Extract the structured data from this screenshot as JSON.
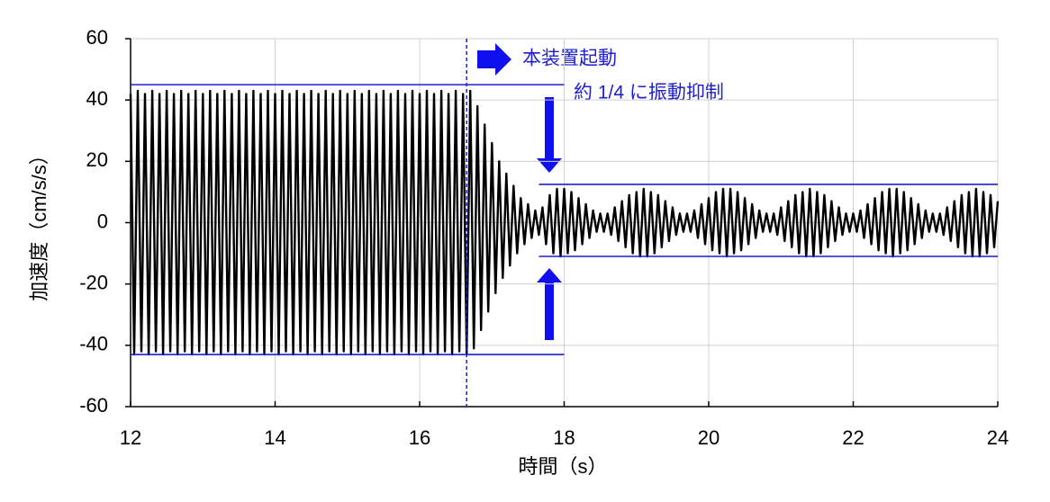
{
  "chart_data": {
    "type": "line",
    "x_label": "時間（s）",
    "y_label": "加速度（cm/s/s）",
    "annotations": [
      "本装置起動",
      "約 1/4 に振動抑制"
    ],
    "color": "#000000",
    "ref_color": "#1f1fd0",
    "x": [
      12,
      12.05,
      12.1,
      12.15,
      12.2,
      12.25,
      12.3,
      12.35,
      12.4,
      12.45,
      12.5,
      12.55,
      12.6,
      12.65,
      12.7,
      12.75,
      12.8,
      12.85,
      12.9,
      12.95,
      13,
      13.05,
      13.1,
      13.15,
      13.2,
      13.25,
      13.3,
      13.35,
      13.4,
      13.45,
      13.5,
      13.55,
      13.6,
      13.65,
      13.7,
      13.75,
      13.8,
      13.85,
      13.9,
      13.95,
      14,
      14.05,
      14.1,
      14.15,
      14.2,
      14.25,
      14.3,
      14.35,
      14.4,
      14.45,
      14.5,
      14.55,
      14.6,
      14.65,
      14.7,
      14.75,
      14.8,
      14.85,
      14.9,
      14.95,
      15,
      15.05,
      15.1,
      15.15,
      15.2,
      15.25,
      15.3,
      15.35,
      15.4,
      15.45,
      15.5,
      15.55,
      15.6,
      15.65,
      15.7,
      15.75,
      15.8,
      15.85,
      15.9,
      15.95,
      16,
      16.05,
      16.1,
      16.15,
      16.2,
      16.25,
      16.3,
      16.35,
      16.4,
      16.45,
      16.5,
      16.55,
      16.6,
      16.65,
      16.7,
      16.75,
      16.8,
      16.85,
      16.9,
      16.95,
      17,
      17.05,
      17.1,
      17.15,
      17.2,
      17.25,
      17.3,
      17.35,
      17.4,
      17.45,
      17.5,
      17.55,
      17.6,
      17.65,
      17.7,
      17.75,
      17.8,
      17.85,
      17.9,
      17.95,
      18,
      18.05,
      18.1,
      18.15,
      18.2,
      18.25,
      18.3,
      18.35,
      18.4,
      18.45,
      18.5,
      18.55,
      18.6,
      18.65,
      18.7,
      18.75,
      18.8,
      18.85,
      18.9,
      18.95,
      19,
      19.05,
      19.1,
      19.15,
      19.2,
      19.25,
      19.3,
      19.35,
      19.4,
      19.45,
      19.5,
      19.55,
      19.6,
      19.65,
      19.7,
      19.75,
      19.8,
      19.85,
      19.9,
      19.95,
      20,
      20.05,
      20.1,
      20.15,
      20.2,
      20.25,
      20.3,
      20.35,
      20.4,
      20.45,
      20.5,
      20.55,
      20.6,
      20.65,
      20.7,
      20.75,
      20.8,
      20.85,
      20.9,
      20.95,
      21,
      21.05,
      21.1,
      21.15,
      21.2,
      21.25,
      21.3,
      21.35,
      21.4,
      21.45,
      21.5,
      21.55,
      21.6,
      21.65,
      21.7,
      21.75,
      21.8,
      21.85,
      21.9,
      21.95,
      22,
      22.05,
      22.1,
      22.15,
      22.2,
      22.25,
      22.3,
      22.35,
      22.4,
      22.45,
      22.5,
      22.55,
      22.6,
      22.65,
      22.7,
      22.75,
      22.8,
      22.85,
      22.9,
      22.95,
      23,
      23.05,
      23.1,
      23.15,
      23.2,
      23.25,
      23.3,
      23.35,
      23.4,
      23.45,
      23.5,
      23.55,
      23.6,
      23.65,
      23.7,
      23.75,
      23.8,
      23.85,
      23.9,
      23.95,
      24
    ],
    "values": [
      42,
      -43,
      43,
      -42,
      42,
      -43,
      43,
      -42,
      42,
      -43,
      43,
      -42,
      42,
      -43,
      43,
      -42,
      42,
      -43,
      43,
      -42,
      42,
      -43,
      43,
      -42,
      42,
      -43,
      43,
      -42,
      42,
      -43,
      43,
      -42,
      42,
      -43,
      43,
      -42,
      42,
      -43,
      43,
      -42,
      42,
      -43,
      43,
      -42,
      42,
      -43,
      43,
      -42,
      42,
      -43,
      43,
      -42,
      42,
      -43,
      43,
      -42,
      42,
      -43,
      43,
      -42,
      42,
      -43,
      43,
      -42,
      42,
      -43,
      43,
      -42,
      42,
      -43,
      43,
      -42,
      42,
      -43,
      43,
      -42,
      42,
      -43,
      43,
      -42,
      42,
      -43,
      43,
      -42,
      42,
      -43,
      43,
      -42,
      42,
      -43,
      43,
      -42,
      42,
      -43,
      43,
      -41,
      38,
      -35,
      32,
      -29,
      26,
      -23,
      20,
      -18,
      16,
      -14,
      12,
      -10,
      8,
      -7,
      6,
      -5,
      4,
      -4,
      5,
      -7,
      9,
      -10,
      11,
      -11,
      11,
      -10,
      10,
      -9,
      8,
      -7,
      6,
      -5,
      4,
      -3,
      3,
      -3,
      3,
      -4,
      5,
      -6,
      7,
      -8,
      9,
      -10,
      10,
      -11,
      11,
      -11,
      10,
      -10,
      9,
      -8,
      7,
      -6,
      5,
      -4,
      3,
      -3,
      3,
      -3,
      4,
      -5,
      6,
      -7,
      8,
      -9,
      10,
      -10,
      11,
      -11,
      11,
      -10,
      10,
      -9,
      8,
      -7,
      6,
      -5,
      4,
      -3,
      3,
      -3,
      3,
      -4,
      5,
      -6,
      7,
      -8,
      9,
      -10,
      10,
      -11,
      11,
      -11,
      10,
      -10,
      9,
      -8,
      7,
      -6,
      5,
      -4,
      3,
      -3,
      3,
      -3,
      4,
      -5,
      6,
      -7,
      8,
      -9,
      10,
      -10,
      11,
      -11,
      11,
      -10,
      10,
      -9,
      8,
      -7,
      6,
      -5,
      4,
      -3,
      3,
      -3,
      3,
      -4,
      5,
      -6,
      7,
      -8,
      9,
      -10,
      10,
      -11,
      11,
      -11,
      10,
      -10,
      9,
      -8,
      7
    ],
    "reference_lines": [
      {
        "y": 45,
        "x": [
          12,
          18
        ]
      },
      {
        "y": -43,
        "x": [
          12,
          18
        ]
      },
      {
        "y": 12.5,
        "x": [
          17.65,
          24
        ]
      },
      {
        "y": -11,
        "x": [
          17.65,
          24
        ]
      }
    ],
    "start_x": 16.65,
    "xlim": [
      12,
      24
    ],
    "xticks": [
      12,
      14,
      16,
      18,
      20,
      22,
      24
    ],
    "ylim": [
      -60,
      60
    ],
    "yticks": [
      -60,
      -40,
      -20,
      0,
      20,
      40,
      60
    ],
    "grid": true
  }
}
